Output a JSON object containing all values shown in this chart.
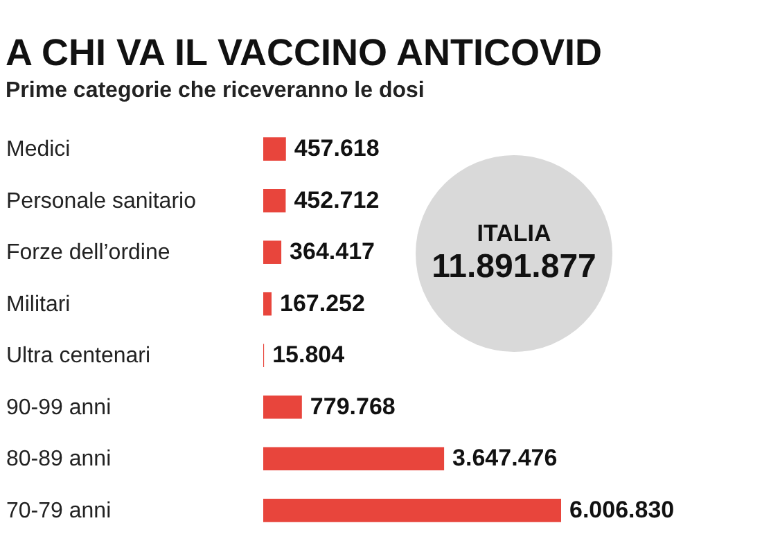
{
  "chart_data": {
    "type": "bar",
    "orientation": "horizontal",
    "title": "A CHI VA IL VACCINO ANTICOVID",
    "subtitle": "Prime categorie che riceveranno le dosi",
    "categories": [
      "Medici",
      "Personale sanitario",
      "Forze dell’ordine",
      "Militari",
      "Ultra centenari",
      "90-99 anni",
      "80-89 anni",
      "70-79 anni"
    ],
    "series": [
      {
        "color": "#e8453c",
        "values": [
          457618,
          452712,
          364417,
          167252,
          15804,
          779768,
          3647476,
          6006830
        ],
        "value_labels": [
          "457.618",
          "452.712",
          "364.417",
          "167.252",
          "15.804",
          "779.768",
          "3.647.476",
          "6.006.830"
        ]
      }
    ],
    "annotations": [
      "ITALIA",
      "11.891.877"
    ]
  }
}
